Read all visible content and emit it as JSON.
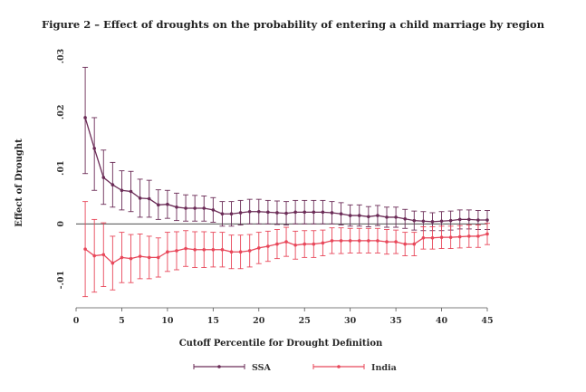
{
  "chart_data": {
    "type": "line",
    "title": "Figure 2 – Effect of droughts on the probability of entering a child marriage by region",
    "xlabel": "Cutoff Percentile for Drought Definition",
    "ylabel": "Effect of Drought",
    "xlim": [
      0,
      45
    ],
    "ylim": [
      -0.015,
      0.03
    ],
    "xticks": [
      0,
      5,
      10,
      15,
      20,
      25,
      30,
      35,
      40,
      45
    ],
    "yticks": [
      -0.01,
      0,
      0.01,
      0.02,
      0.03
    ],
    "ytick_labels": [
      "-.01",
      "0",
      ".01",
      ".02",
      ".03"
    ],
    "grid": false,
    "reference_line_y": 0,
    "legend_position": "bottom-center",
    "x": [
      1,
      2,
      3,
      4,
      5,
      6,
      7,
      8,
      9,
      10,
      11,
      12,
      13,
      14,
      15,
      16,
      17,
      18,
      19,
      20,
      21,
      22,
      23,
      24,
      25,
      26,
      27,
      28,
      29,
      30,
      31,
      32,
      33,
      34,
      35,
      36,
      37,
      38,
      39,
      40,
      41,
      42,
      43,
      44,
      45
    ],
    "series": [
      {
        "name": "SSA",
        "color": "#6b2c57",
        "values": [
          0.019,
          0.0135,
          0.0083,
          0.007,
          0.006,
          0.0058,
          0.0046,
          0.0045,
          0.0034,
          0.0035,
          0.003,
          0.0028,
          0.0028,
          0.0028,
          0.0025,
          0.0018,
          0.0018,
          0.002,
          0.0022,
          0.0022,
          0.0021,
          0.002,
          0.0019,
          0.0021,
          0.0021,
          0.0021,
          0.0021,
          0.002,
          0.0018,
          0.0015,
          0.0015,
          0.0013,
          0.0015,
          0.0012,
          0.0012,
          0.0009,
          0.0006,
          0.0005,
          0.0004,
          0.0005,
          0.0006,
          0.0008,
          0.0008,
          0.0007,
          0.0007
        ],
        "ci_low": [
          0.009,
          0.006,
          0.0035,
          0.003,
          0.0025,
          0.0022,
          0.0012,
          0.0012,
          0.0008,
          0.001,
          0.0006,
          0.0005,
          0.0005,
          0.0005,
          0.0003,
          -0.0004,
          -0.0004,
          -0.0002,
          0.0,
          0.0,
          0.0,
          -0.0001,
          -0.0002,
          0.0,
          0.0,
          0.0,
          0.0,
          0.0,
          -0.0002,
          -0.0004,
          -0.0004,
          -0.0005,
          -0.0003,
          -0.0006,
          -0.0006,
          -0.0008,
          -0.0011,
          -0.0012,
          -0.0012,
          -0.0012,
          -0.0011,
          -0.0009,
          -0.0009,
          -0.001,
          -0.001
        ],
        "ci_high": [
          0.028,
          0.019,
          0.0132,
          0.011,
          0.0095,
          0.0094,
          0.008,
          0.0078,
          0.0061,
          0.006,
          0.0055,
          0.0052,
          0.0051,
          0.005,
          0.0047,
          0.004,
          0.004,
          0.0042,
          0.0044,
          0.0044,
          0.0042,
          0.0041,
          0.004,
          0.0042,
          0.0042,
          0.0042,
          0.0042,
          0.004,
          0.0038,
          0.0034,
          0.0034,
          0.0031,
          0.0033,
          0.003,
          0.003,
          0.0026,
          0.0023,
          0.0022,
          0.002,
          0.0022,
          0.0023,
          0.0025,
          0.0025,
          0.0024,
          0.0024
        ]
      },
      {
        "name": "India",
        "color": "#e8475a",
        "values": [
          -0.0045,
          -0.0057,
          -0.0055,
          -0.007,
          -0.006,
          -0.0062,
          -0.0058,
          -0.006,
          -0.006,
          -0.005,
          -0.0048,
          -0.0044,
          -0.0046,
          -0.0046,
          -0.0046,
          -0.0046,
          -0.005,
          -0.005,
          -0.0048,
          -0.0043,
          -0.004,
          -0.0036,
          -0.0032,
          -0.0038,
          -0.0036,
          -0.0036,
          -0.0034,
          -0.003,
          -0.003,
          -0.003,
          -0.003,
          -0.003,
          -0.003,
          -0.0032,
          -0.0032,
          -0.0036,
          -0.0036,
          -0.0025,
          -0.0025,
          -0.0024,
          -0.0024,
          -0.0023,
          -0.0022,
          -0.0022,
          -0.0018
        ],
        "ci_low": [
          -0.013,
          -0.0122,
          -0.0112,
          -0.0118,
          -0.0105,
          -0.0105,
          -0.0098,
          -0.0098,
          -0.0095,
          -0.0085,
          -0.0082,
          -0.0076,
          -0.0078,
          -0.0078,
          -0.0077,
          -0.0077,
          -0.008,
          -0.008,
          -0.0077,
          -0.0071,
          -0.0067,
          -0.0062,
          -0.0058,
          -0.0063,
          -0.006,
          -0.006,
          -0.0057,
          -0.0053,
          -0.0053,
          -0.0052,
          -0.0052,
          -0.0052,
          -0.0052,
          -0.0054,
          -0.0053,
          -0.0057,
          -0.0057,
          -0.0045,
          -0.0045,
          -0.0044,
          -0.0044,
          -0.0043,
          -0.0042,
          -0.0042,
          -0.0037
        ],
        "ci_high": [
          0.004,
          0.0008,
          0.0002,
          -0.0022,
          -0.0015,
          -0.0019,
          -0.0018,
          -0.0022,
          -0.0025,
          -0.0015,
          -0.0014,
          -0.0012,
          -0.0014,
          -0.0014,
          -0.0015,
          -0.0015,
          -0.002,
          -0.002,
          -0.0019,
          -0.0015,
          -0.0013,
          -0.001,
          -0.0006,
          -0.0013,
          -0.0012,
          -0.0012,
          -0.0011,
          -0.0007,
          -0.0007,
          -0.0008,
          -0.0008,
          -0.0008,
          -0.0008,
          -0.001,
          -0.0011,
          -0.0015,
          -0.0015,
          -0.0005,
          -0.0005,
          -0.0004,
          -0.0004,
          -0.0003,
          -0.0002,
          -0.0002,
          0.0001
        ]
      }
    ]
  }
}
